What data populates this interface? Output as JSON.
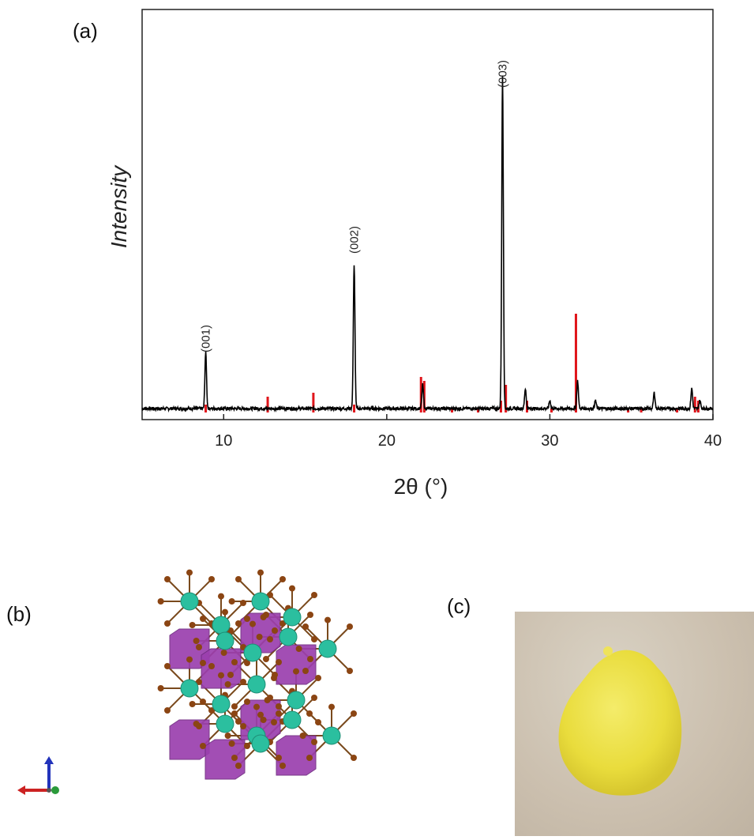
{
  "panels": {
    "a": "(a)",
    "b": "(b)",
    "c": "(c)"
  },
  "chart_data": {
    "type": "line",
    "title": "",
    "xlabel": "2θ (°)",
    "ylabel": "Intensity",
    "xlim": [
      5,
      40
    ],
    "ylim": [
      0,
      100
    ],
    "x_ticks": [
      "10",
      "20",
      "30",
      "40"
    ],
    "grid": false,
    "peak_labels": [
      {
        "text": "(001)",
        "x": 8.9,
        "y": 14
      },
      {
        "text": "(002)",
        "x": 18.0,
        "y": 39
      },
      {
        "text": "(003)",
        "x": 27.1,
        "y": 81
      }
    ],
    "series": [
      {
        "kind": "measured",
        "color": "#000000",
        "peaks": [
          [
            8.9,
            14
          ],
          [
            18.0,
            36
          ],
          [
            22.2,
            6
          ],
          [
            27.1,
            84
          ],
          [
            28.5,
            5
          ],
          [
            30.0,
            2
          ],
          [
            31.7,
            7
          ],
          [
            32.8,
            2
          ],
          [
            36.4,
            4
          ],
          [
            38.7,
            5
          ],
          [
            39.2,
            2
          ]
        ]
      },
      {
        "kind": "reference",
        "color": "#e0151b",
        "sticks": [
          [
            8.9,
            2
          ],
          [
            12.7,
            4
          ],
          [
            15.5,
            5
          ],
          [
            18.0,
            2
          ],
          [
            22.1,
            9
          ],
          [
            22.3,
            8
          ],
          [
            24.0,
            1
          ],
          [
            25.6,
            1
          ],
          [
            27.0,
            3
          ],
          [
            27.3,
            7
          ],
          [
            28.6,
            3
          ],
          [
            30.1,
            1
          ],
          [
            31.6,
            25
          ],
          [
            34.8,
            1
          ],
          [
            35.6,
            1
          ],
          [
            37.8,
            1
          ],
          [
            38.9,
            4
          ],
          [
            39.1,
            3
          ]
        ]
      }
    ]
  },
  "icons": {
    "structure": "crystal-structure-image",
    "photo": "yellow-powder-photo",
    "axes": "axis-triad-icon"
  }
}
